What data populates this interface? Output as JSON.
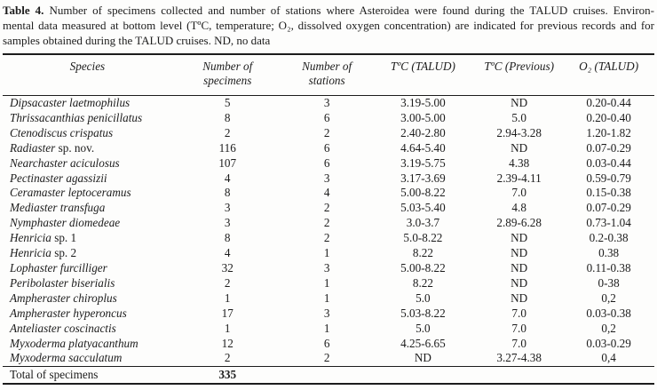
{
  "caption": {
    "label": "Table 4.",
    "line1_rest": " Number of specimens collected and number of stations where Asteroidea were found during the TALUD cruises. Environ-",
    "line2": "mental data measured at bottom level (TºC, temperature; O₂, dissolved oxygen concentration) are indicated for previous records and for",
    "line3": "samples obtained during the TALUD cruises. ND, no data"
  },
  "table": {
    "columns": [
      {
        "line1": "Species",
        "line2": ""
      },
      {
        "line1": "Number of",
        "line2": "specimens"
      },
      {
        "line1": "Number of",
        "line2": "stations"
      },
      {
        "line1": "TºC (TALUD)",
        "line2": ""
      },
      {
        "line1": "TºC (Previous)",
        "line2": ""
      },
      {
        "line1": "O₂ (TALUD)",
        "line2": ""
      }
    ],
    "rows": [
      {
        "species_italic": "Dipsacaster laetmophilus",
        "species_roman": "",
        "specimens": "5",
        "stations": "3",
        "t_talud": "3.19-5.00",
        "t_previous": "ND",
        "o2_talud": "0.20-0.44"
      },
      {
        "species_italic": "Thrissacanthias penicillatus",
        "species_roman": "",
        "specimens": "8",
        "stations": "6",
        "t_talud": "3.00-5.00",
        "t_previous": "5.0",
        "o2_talud": "0.20-0.40"
      },
      {
        "species_italic": "Ctenodiscus crispatus",
        "species_roman": "",
        "specimens": "2",
        "stations": "2",
        "t_talud": "2.40-2.80",
        "t_previous": "2.94-3.28",
        "o2_talud": "1.20-1.82"
      },
      {
        "species_italic": "Radiaster",
        "species_roman": " sp. nov.",
        "specimens": "116",
        "stations": "6",
        "t_talud": "4.64-5.40",
        "t_previous": "ND",
        "o2_talud": "0.07-0.29"
      },
      {
        "species_italic": "Nearchaster aciculosus",
        "species_roman": "",
        "specimens": "107",
        "stations": "6",
        "t_talud": "3.19-5.75",
        "t_previous": "4.38",
        "o2_talud": "0.03-0.44"
      },
      {
        "species_italic": "Pectinaster agassizii",
        "species_roman": "",
        "specimens": "4",
        "stations": "3",
        "t_talud": "3.17-3.69",
        "t_previous": "2.39-4.11",
        "o2_talud": "0.59-0.79"
      },
      {
        "species_italic": "Ceramaster leptoceramus",
        "species_roman": "",
        "specimens": "8",
        "stations": "4",
        "t_talud": "5.00-8.22",
        "t_previous": "7.0",
        "o2_talud": "0.15-0.38"
      },
      {
        "species_italic": "Mediaster transfuga",
        "species_roman": "",
        "specimens": "3",
        "stations": "2",
        "t_talud": "5.03-5.40",
        "t_previous": "4.8",
        "o2_talud": "0.07-0.29"
      },
      {
        "species_italic": "Nymphaster diomedeae",
        "species_roman": "",
        "specimens": "3",
        "stations": "2",
        "t_talud": "3.0-3.7",
        "t_previous": "2.89-6.28",
        "o2_talud": "0.73-1.04"
      },
      {
        "species_italic": "Henricia",
        "species_roman": " sp. 1",
        "specimens": "8",
        "stations": "2",
        "t_talud": "5.0-8.22",
        "t_previous": "ND",
        "o2_talud": "0.2-0.38"
      },
      {
        "species_italic": "Henricia",
        "species_roman": " sp. 2",
        "specimens": "4",
        "stations": "1",
        "t_talud": "8.22",
        "t_previous": "ND",
        "o2_talud": "0.38"
      },
      {
        "species_italic": "Lophaster furcilliger",
        "species_roman": "",
        "specimens": "32",
        "stations": "3",
        "t_talud": "5.00-8.22",
        "t_previous": "ND",
        "o2_talud": "0.11-0.38"
      },
      {
        "species_italic": "Peribolaster biserialis",
        "species_roman": "",
        "specimens": "2",
        "stations": "1",
        "t_talud": "8.22",
        "t_previous": "ND",
        "o2_talud": "0-38"
      },
      {
        "species_italic": "Ampheraster chiroplus",
        "species_roman": "",
        "specimens": "1",
        "stations": "1",
        "t_talud": "5.0",
        "t_previous": "ND",
        "o2_talud": "0,2"
      },
      {
        "species_italic": "Ampheraster hyperoncus",
        "species_roman": "",
        "specimens": "17",
        "stations": "3",
        "t_talud": "5.03-8.22",
        "t_previous": "7.0",
        "o2_talud": "0.03-0.38"
      },
      {
        "species_italic": "Anteliaster coscinactis",
        "species_roman": "",
        "specimens": "1",
        "stations": "1",
        "t_talud": "5.0",
        "t_previous": "7.0",
        "o2_talud": "0,2"
      },
      {
        "species_italic": "Myxoderma platyacanthum",
        "species_roman": "",
        "specimens": "12",
        "stations": "6",
        "t_talud": "4.25-6.65",
        "t_previous": "7.0",
        "o2_talud": "0.03-0.29"
      },
      {
        "species_italic": "Myxoderma sacculatum",
        "species_roman": "",
        "specimens": "2",
        "stations": "2",
        "t_talud": "ND",
        "t_previous": "3.27-4.38",
        "o2_talud": "0,4"
      }
    ],
    "total": {
      "label": "Total of specimens",
      "value": "335"
    }
  }
}
